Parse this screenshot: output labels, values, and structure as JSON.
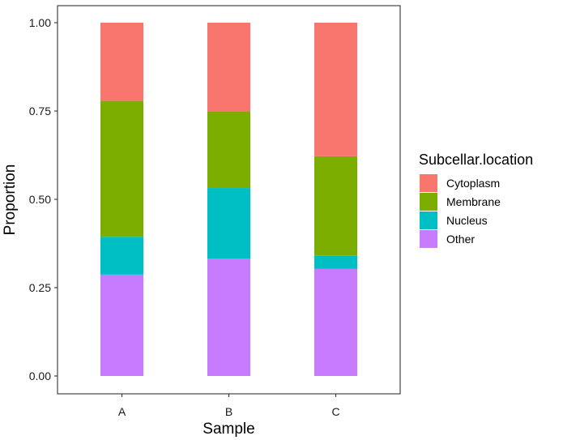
{
  "chart_data": {
    "type": "bar",
    "stacked": true,
    "categories": [
      "A",
      "B",
      "C"
    ],
    "series": [
      {
        "name": "Other",
        "color": "#C77CFF",
        "values": [
          0.287,
          0.332,
          0.303
        ]
      },
      {
        "name": "Nucleus",
        "color": "#00BFC4",
        "values": [
          0.107,
          0.2,
          0.037
        ]
      },
      {
        "name": "Membrane",
        "color": "#7CAE00",
        "values": [
          0.385,
          0.217,
          0.282
        ]
      },
      {
        "name": "Cytoplasm",
        "color": "#F8766D",
        "values": [
          0.221,
          0.251,
          0.378
        ]
      }
    ],
    "xlabel": "Sample",
    "ylabel": "Proportion",
    "ylim": [
      0,
      1
    ],
    "yticks": [
      "0.00",
      "0.25",
      "0.50",
      "0.75",
      "1.00"
    ],
    "grid": false,
    "legend": {
      "title": "Subcellar.location",
      "position": "right",
      "entries": [
        "Cytoplasm",
        "Membrane",
        "Nucleus",
        "Other"
      ]
    }
  }
}
